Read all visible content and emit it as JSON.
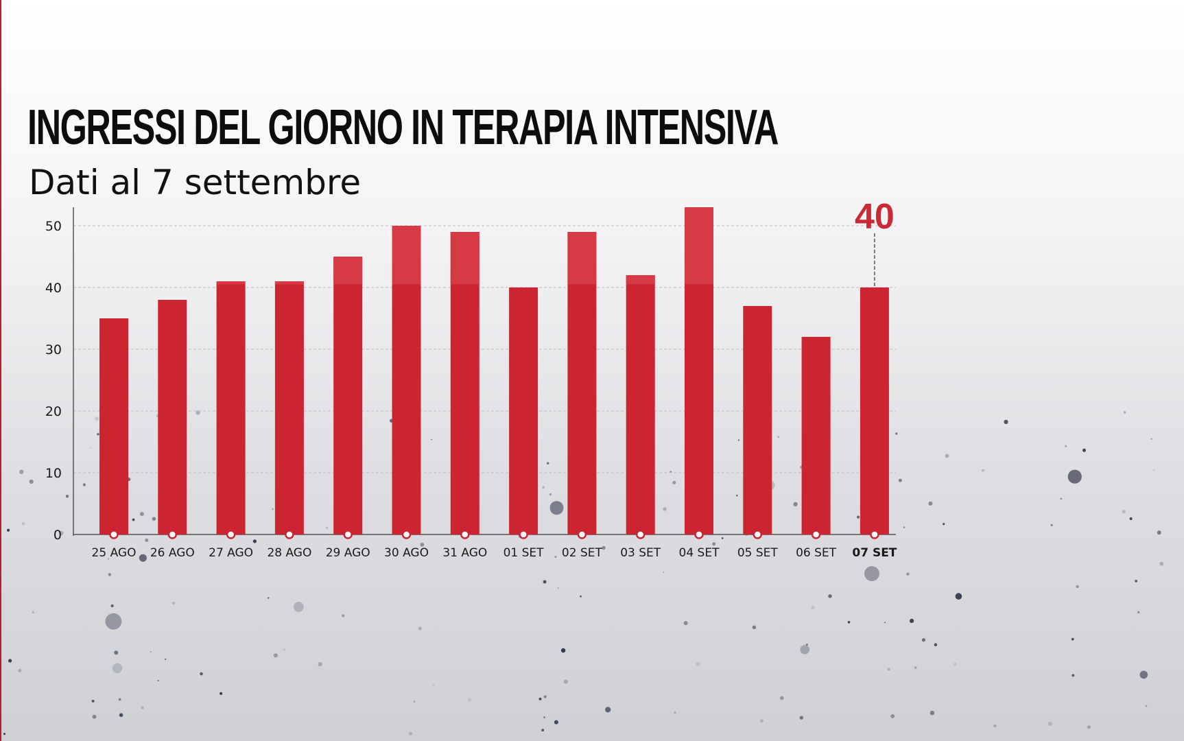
{
  "header": {
    "title": "INGRESSI DEL GIORNO IN TERAPIA INTENSIVA",
    "subtitle": "Dati al 7 settembre"
  },
  "colors": {
    "bar": "#cc2431",
    "bar_highlight": "#d53a45",
    "grid": "#bdbdc3",
    "axis": "#555555",
    "text": "#1a1a1a",
    "callout": "#c82b35"
  },
  "chart_data": {
    "type": "bar",
    "title": "INGRESSI DEL GIORNO IN TERAPIA INTENSIVA",
    "subtitle": "Dati al 7 settembre",
    "categories": [
      "25 AGO",
      "26 AGO",
      "27 AGO",
      "28 AGO",
      "29 AGO",
      "30 AGO",
      "31 AGO",
      "01 SET",
      "02 SET",
      "03 SET",
      "04 SET",
      "05 SET",
      "06 SET",
      "07 SET"
    ],
    "values": [
      35,
      38,
      41,
      41,
      45,
      50,
      49,
      40,
      49,
      42,
      53,
      37,
      32,
      40
    ],
    "ylim": [
      0,
      53
    ],
    "yticks": [
      0,
      10,
      20,
      30,
      40,
      50
    ],
    "grid": true,
    "highlight": {
      "category": "07 SET",
      "label": "40"
    }
  }
}
